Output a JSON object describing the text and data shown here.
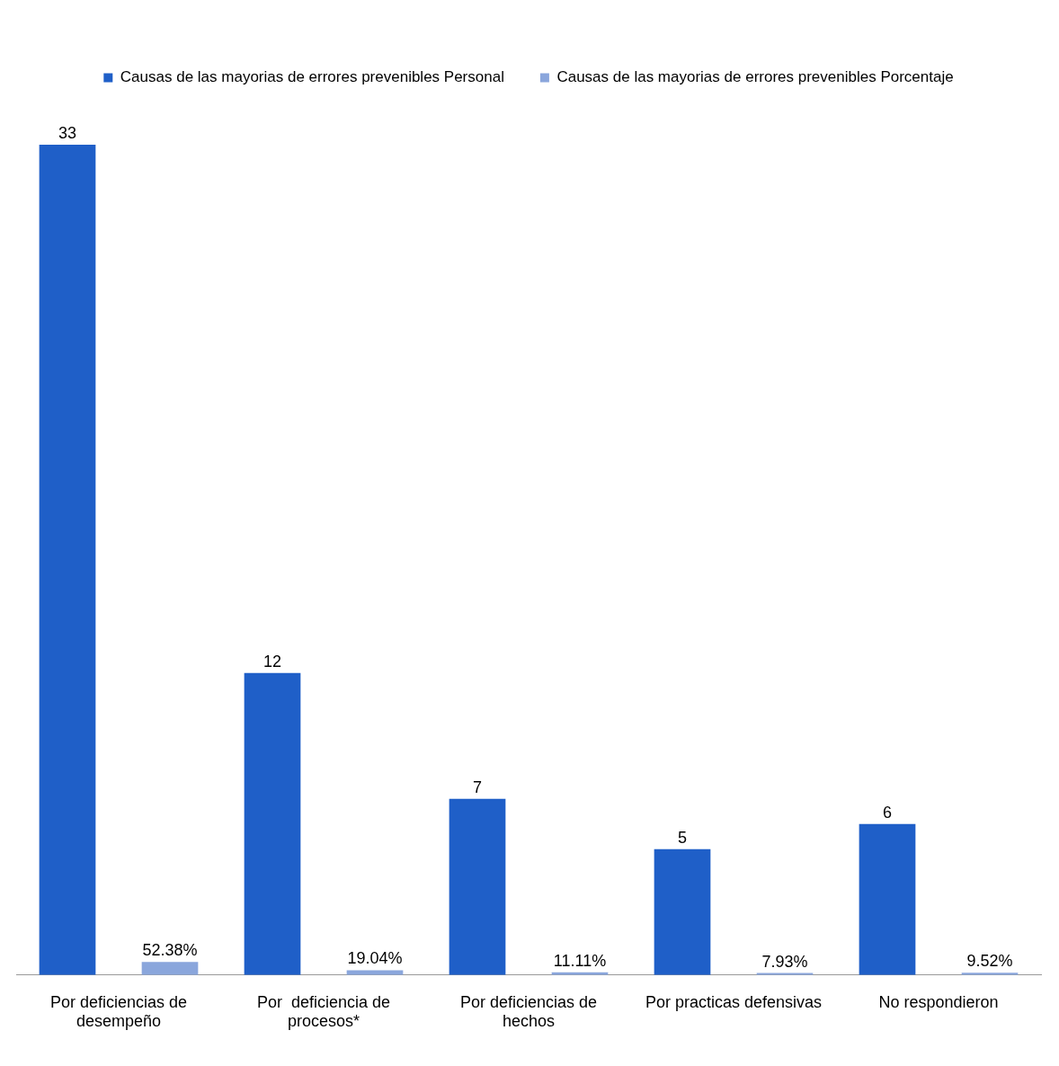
{
  "chart_data": {
    "type": "bar",
    "categories": [
      "Por deficiencias de desempeño",
      "Por  deficiencia de procesos*",
      "Por deficiencias de hechos",
      "Por practicas defensivas",
      "No respondieron"
    ],
    "series": [
      {
        "name": "Causas de las mayorias de errores prevenibles Personal",
        "color": "#1f5fc8",
        "values": [
          33,
          12,
          7,
          5,
          6
        ]
      },
      {
        "name": "Causas de las mayorias de errores prevenibles Porcentaje",
        "color": "#8aa6dc",
        "values": [
          52.38,
          19.04,
          11.11,
          7.93,
          9.52
        ],
        "axis": "y2",
        "value_labels": [
          "52.38%",
          "19.04%",
          "11.11%",
          "7.93%",
          "9.52%"
        ]
      }
    ],
    "data_labels": true,
    "legend": "top",
    "grid": false
  }
}
